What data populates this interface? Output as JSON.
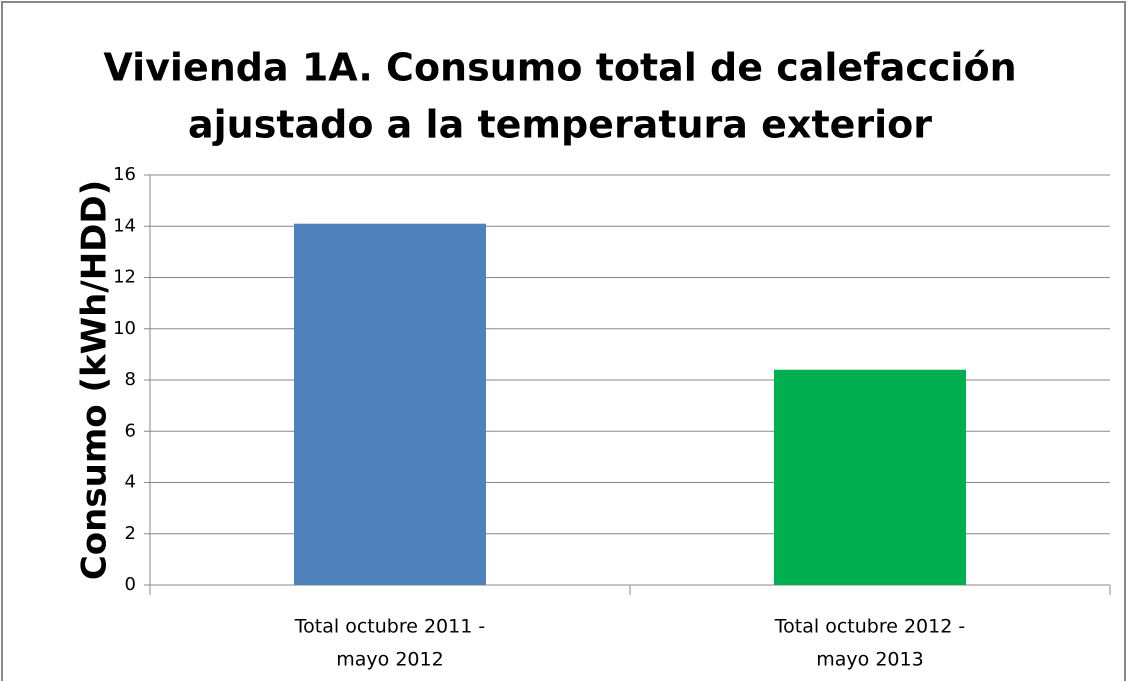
{
  "chart_data": {
    "type": "bar",
    "title": [
      "Vivienda 1A. Consumo total de calefacción",
      "ajustado a la temperatura exterior"
    ],
    "y_label": "Consumo (kWh/HDD)",
    "categories": [
      [
        "Total octubre 2011 -",
        "mayo 2012"
      ],
      [
        "Total octubre 2012 -",
        "mayo 2013"
      ]
    ],
    "values": [
      14.1,
      8.4
    ],
    "colors": [
      "#4f81bd",
      "#00b050"
    ],
    "ylim": [
      0,
      16
    ],
    "yticks": [
      0,
      2,
      4,
      6,
      8,
      10,
      12,
      14,
      16
    ],
    "grid": true
  }
}
